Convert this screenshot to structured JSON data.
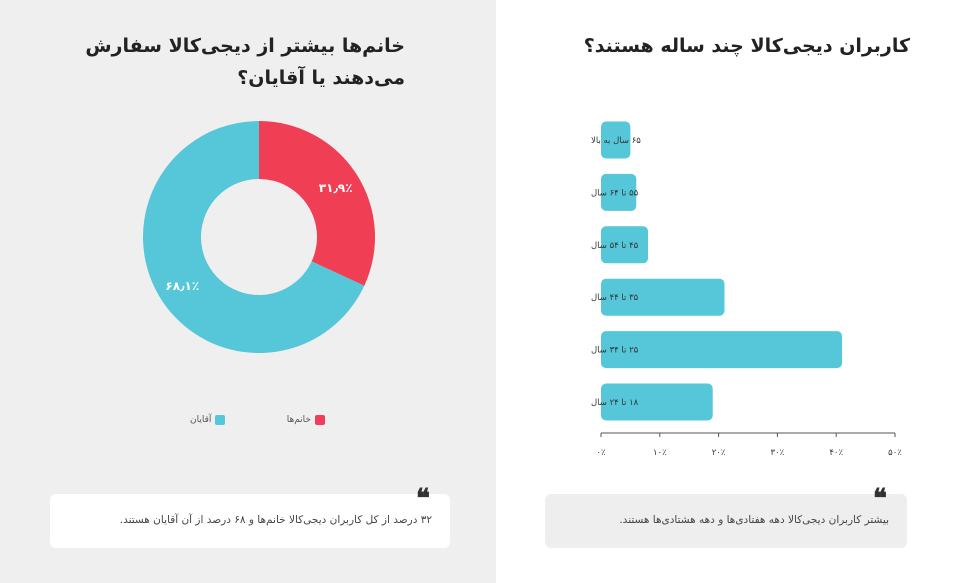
{
  "gender_section": {
    "title": "خانم‌ها بیشتر از دیجی‌کالا سفارش می‌دهند یا آقایان؟",
    "legend": [
      {
        "label": "خانم‌ها",
        "color": "#f03e55"
      },
      {
        "label": "آقایان",
        "color": "#56c6d9"
      }
    ],
    "quote": "۳۲ درصد از کل کاربران دیجی‌کالا خانم‌ها و ۶۸ درصد از آن آقایان هستند."
  },
  "age_section": {
    "title": "کاربران دیجی‌کالا چند ساله هستند؟",
    "quote": "بیشتر کاربران دیجی‌کالا دهه هفتادی‌ها و دهه هشتادی‌ها هستند."
  },
  "quote_icon": "quote-icon",
  "chart_data": [
    {
      "type": "pie",
      "title": "خانم‌ها بیشتر از دیجی‌کالا سفارش می‌دهند یا آقایان؟",
      "categories": [
        "خانم‌ها",
        "آقایان"
      ],
      "values": [
        31.9,
        68.1
      ],
      "value_labels": [
        "۳۱٫۹٪",
        "۶۸٫۱٪"
      ],
      "colors": [
        "#f03e55",
        "#56c6d9"
      ],
      "donut": true,
      "legend_position": "bottom"
    },
    {
      "type": "bar",
      "orientation": "horizontal",
      "title": "کاربران دیجی‌کالا چند ساله هستند؟",
      "categories": [
        "۶۵ سال به بالا",
        "۵۵ تا ۶۴ سال",
        "۴۵ تا ۵۴ سال",
        "۳۵ تا ۴۴ سال",
        "۲۵ تا ۳۴ سال",
        "۱۸ تا ۲۴ سال"
      ],
      "values": [
        5,
        6,
        8,
        21,
        41,
        19
      ],
      "xlim": [
        0,
        50
      ],
      "ticks": [
        0,
        10,
        20,
        30,
        40,
        50
      ],
      "tick_labels": [
        "۰٪",
        "۱۰٪",
        "۲۰٪",
        "۳۰٪",
        "۴۰٪",
        "۵۰٪"
      ],
      "color": "#56c6d9",
      "grid": false
    }
  ]
}
